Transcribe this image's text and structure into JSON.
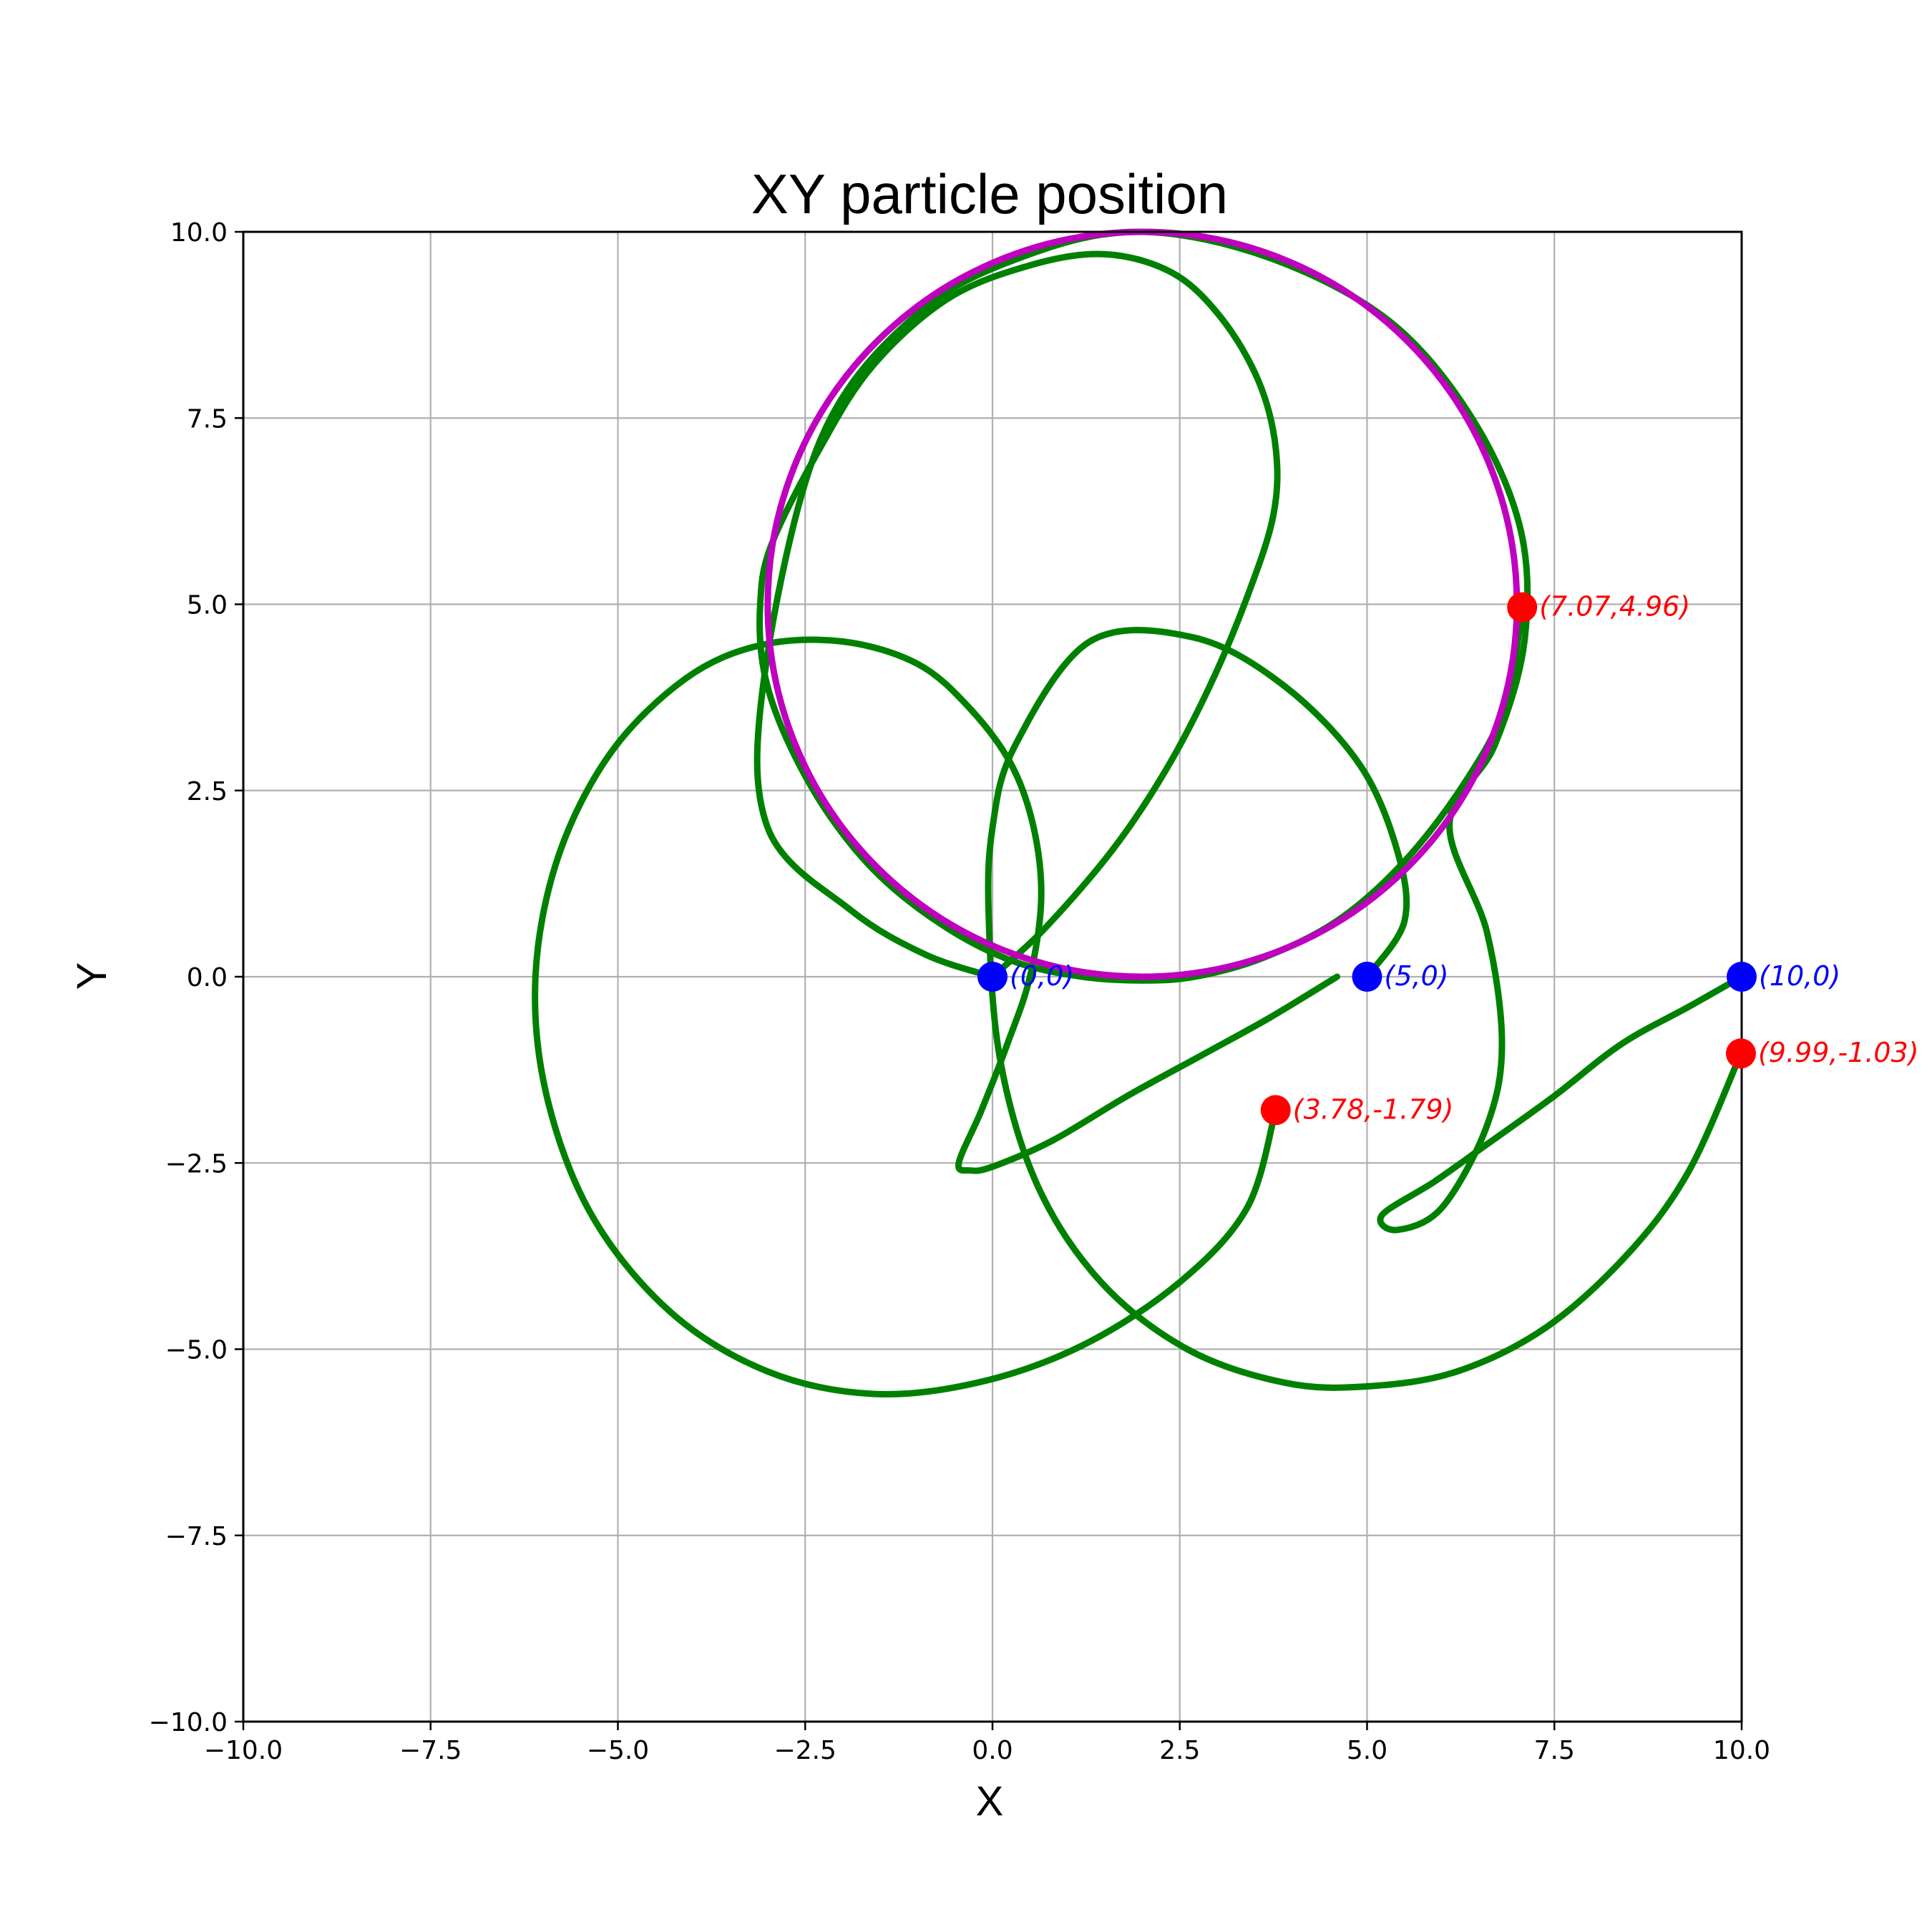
{
  "chart_data": {
    "type": "line",
    "title": "XY particle position",
    "xlabel": "X",
    "ylabel": "Y",
    "xlim": [
      -10,
      10
    ],
    "ylim": [
      -10,
      10
    ],
    "grid": true,
    "xticks": [
      "−10.0",
      "−7.5",
      "−5.0",
      "−2.5",
      "0.0",
      "2.5",
      "5.0",
      "7.5",
      "10.0"
    ],
    "yticks": [
      "−10.0",
      "−7.5",
      "−5.0",
      "−2.5",
      "0.0",
      "2.5",
      "5.0",
      "7.5",
      "10.0"
    ],
    "tick_values": [
      -10,
      -7.5,
      -5,
      -2.5,
      0,
      2.5,
      5,
      7.5,
      10
    ],
    "colors": {
      "trajectory": "#008000",
      "highlight_orbit": "#bf00bf",
      "start_points": "#0000ff",
      "end_points": "#ff0000",
      "grid": "#b0b0b0"
    },
    "trajectories": [
      {
        "points": [
          [
            0,
            0
          ],
          [
            0.7,
            0.65
          ],
          [
            1.6,
            1.7
          ],
          [
            2.3,
            2.75
          ],
          [
            2.9,
            3.9
          ],
          [
            3.4,
            5.1
          ],
          [
            3.75,
            6.2
          ],
          [
            3.78,
            7.1
          ],
          [
            3.55,
            8.0
          ],
          [
            3.05,
            8.85
          ],
          [
            2.4,
            9.45
          ],
          [
            1.5,
            9.7
          ],
          [
            0.5,
            9.55
          ],
          [
            -0.6,
            9.1
          ],
          [
            -1.6,
            8.2
          ],
          [
            -2.3,
            7.1
          ],
          [
            -2.95,
            5.8
          ],
          [
            -3.1,
            5.0
          ],
          [
            -3.05,
            4.1
          ],
          [
            -2.75,
            3.2
          ],
          [
            -2.2,
            2.2
          ],
          [
            -1.5,
            1.35
          ],
          [
            -0.6,
            0.65
          ],
          [
            0.3,
            0.2
          ],
          [
            1.2,
            0.0
          ],
          [
            2.0,
            -0.05
          ],
          [
            2.7,
            0.0
          ],
          [
            3.6,
            0.25
          ],
          [
            4.6,
            0.75
          ],
          [
            5.5,
            1.55
          ],
          [
            6.3,
            2.6
          ],
          [
            6.85,
            3.65
          ],
          [
            7.07,
            4.96
          ]
        ]
      },
      {
        "points": [
          [
            0,
            0
          ],
          [
            -0.9,
            0.3
          ],
          [
            -1.9,
            0.9
          ],
          [
            -3.0,
            2.0
          ],
          [
            -3.05,
            4.0
          ],
          [
            -2.3,
            7.2
          ],
          [
            -1.0,
            8.9
          ],
          [
            0.5,
            9.7
          ],
          [
            2.0,
            10.0
          ],
          [
            3.7,
            9.65
          ],
          [
            5.3,
            8.8
          ],
          [
            6.4,
            7.5
          ],
          [
            7.05,
            6.0
          ],
          [
            7.1,
            4.5
          ],
          [
            6.7,
            3.1
          ],
          [
            6.1,
            2.05
          ],
          [
            6.6,
            0.6
          ],
          [
            6.8,
            -0.9
          ],
          [
            6.6,
            -2.0
          ],
          [
            6.0,
            -3.1
          ],
          [
            5.4,
            -3.4
          ],
          [
            5.2,
            -3.2
          ],
          [
            5.9,
            -2.75
          ],
          [
            6.6,
            -2.25
          ],
          [
            7.5,
            -1.6
          ],
          [
            8.4,
            -0.9
          ],
          [
            9.3,
            -0.4
          ],
          [
            10.0,
            0.0
          ]
        ]
      },
      {
        "points": [
          [
            4.6,
            0.0
          ],
          [
            3.7,
            -0.55
          ],
          [
            2.8,
            -1.05
          ],
          [
            1.8,
            -1.6
          ],
          [
            0.8,
            -2.2
          ],
          [
            0.0,
            -2.55
          ],
          [
            -0.3,
            -2.6
          ],
          [
            -0.45,
            -2.5
          ],
          [
            -0.15,
            -1.8
          ],
          [
            0.2,
            -0.9
          ],
          [
            0.5,
            0.0
          ],
          [
            0.65,
            1.05
          ],
          [
            0.55,
            2.0
          ],
          [
            0.25,
            2.85
          ],
          [
            -0.3,
            3.6
          ],
          [
            -1.0,
            4.2
          ],
          [
            -2.0,
            4.5
          ],
          [
            -3.1,
            4.45
          ],
          [
            -4.1,
            4.0
          ],
          [
            -5.1,
            3.0
          ],
          [
            -5.8,
            1.6
          ],
          [
            -6.1,
            0.0
          ],
          [
            -5.95,
            -1.6
          ],
          [
            -5.35,
            -3.2
          ],
          [
            -4.3,
            -4.5
          ],
          [
            -3.0,
            -5.3
          ],
          [
            -1.6,
            -5.6
          ],
          [
            -0.2,
            -5.45
          ],
          [
            1.2,
            -4.95
          ],
          [
            2.5,
            -4.1
          ],
          [
            3.4,
            -3.1
          ],
          [
            3.78,
            -1.79
          ]
        ]
      },
      {
        "points": [
          [
            5.0,
            0.0
          ],
          [
            5.5,
            0.75
          ],
          [
            5.4,
            1.7
          ],
          [
            4.9,
            2.85
          ],
          [
            3.9,
            3.9
          ],
          [
            2.7,
            4.55
          ],
          [
            1.3,
            4.5
          ],
          [
            0.3,
            3.1
          ],
          [
            0.0,
            2.0
          ],
          [
            -0.05,
            0.8
          ],
          [
            0.1,
            -1.1
          ],
          [
            0.6,
            -2.8
          ],
          [
            1.45,
            -4.1
          ],
          [
            2.6,
            -5.0
          ],
          [
            3.9,
            -5.45
          ],
          [
            5.0,
            -5.5
          ],
          [
            6.2,
            -5.3
          ],
          [
            7.4,
            -4.7
          ],
          [
            8.5,
            -3.7
          ],
          [
            9.3,
            -2.6
          ],
          [
            9.99,
            -1.03
          ]
        ]
      }
    ],
    "highlight_orbit": {
      "center": [
        2.0,
        5.0
      ],
      "radius": 5.0
    },
    "start_points": [
      {
        "x": 0,
        "y": 0,
        "label": "(0,0)"
      },
      {
        "x": 5,
        "y": 0,
        "label": "(5,0)"
      },
      {
        "x": 10,
        "y": 0,
        "label": "(10,0)"
      }
    ],
    "end_points": [
      {
        "x": 7.07,
        "y": 4.96,
        "label": "(7.07,4.96)"
      },
      {
        "x": 3.78,
        "y": -1.79,
        "label": "(3.78,-1.79)"
      },
      {
        "x": 9.99,
        "y": -1.03,
        "label": "(9.99,-1.03)"
      }
    ]
  }
}
